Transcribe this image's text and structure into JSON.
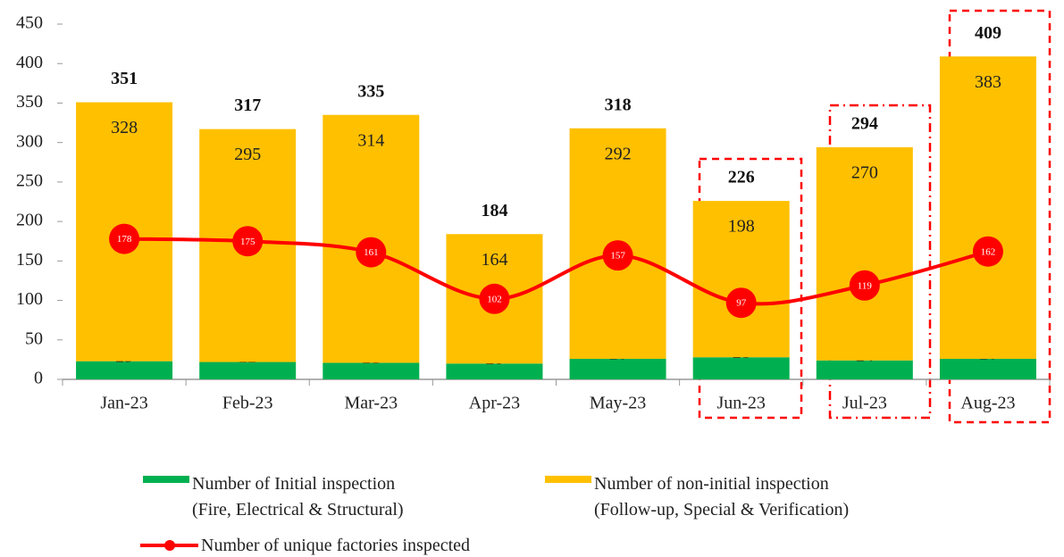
{
  "chart_data": {
    "type": "bar-line",
    "categories": [
      "Jan-23",
      "Feb-23",
      "Mar-23",
      "Apr-23",
      "May-23",
      "Jun-23",
      "Jul-23",
      "Aug-23"
    ],
    "series": [
      {
        "name": "Number of Initial inspection\n(Fire, Electrical & Structural)",
        "color": "#00b050",
        "kind": "bar",
        "values": [
          23,
          22,
          21,
          20,
          26,
          28,
          24,
          26
        ]
      },
      {
        "name": "Number of non-initial inspection\n(Follow-up, Special & Verification)",
        "color": "#ffc000",
        "kind": "bar",
        "values": [
          328,
          295,
          314,
          164,
          292,
          198,
          270,
          383
        ]
      },
      {
        "name": "Number of unique factories inspected",
        "color": "#ff0000",
        "kind": "line",
        "values": [
          178,
          175,
          161,
          102,
          157,
          97,
          119,
          162
        ]
      }
    ],
    "totals": [
      351,
      317,
      335,
      184,
      318,
      226,
      294,
      409
    ],
    "ylim": [
      0,
      450
    ],
    "yticks": [
      0,
      50,
      100,
      150,
      200,
      250,
      300,
      350,
      400,
      450
    ],
    "stacked": true,
    "grid": false
  }
}
